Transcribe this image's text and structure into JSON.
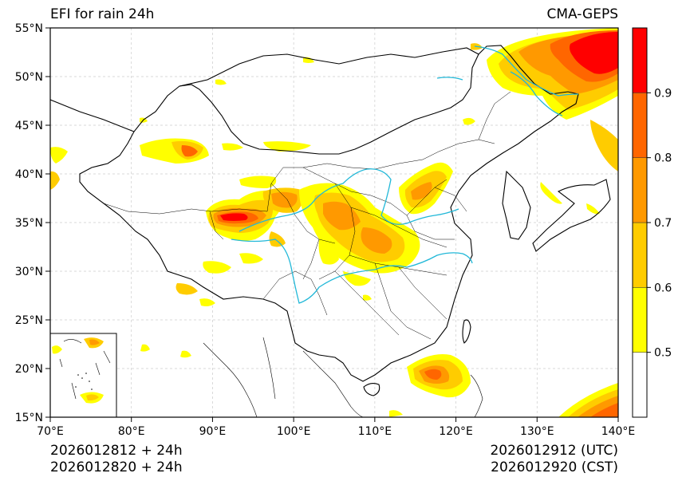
{
  "title": "EFI for rain 24h",
  "source": "CMA-GEPS",
  "run": {
    "init_utc": "2026012812 + 24h",
    "init_cst": "2026012820 + 24h",
    "valid_utc": "2026012912 (UTC)",
    "valid_cst": "2026012920 (CST)"
  },
  "axes": {
    "lon_range": [
      70,
      140
    ],
    "lat_range": [
      15,
      55
    ],
    "lon_ticks": [
      "70°E",
      "80°E",
      "90°E",
      "100°E",
      "110°E",
      "120°E",
      "130°E",
      "140°E"
    ],
    "lat_ticks": [
      "15°N",
      "20°N",
      "25°N",
      "30°N",
      "35°N",
      "40°N",
      "45°N",
      "50°N",
      "55°N"
    ],
    "grid": true
  },
  "colorbar": {
    "levels": [
      0.4,
      0.5,
      0.6,
      0.7,
      0.8,
      0.9,
      1.0
    ],
    "labels": [
      "0.5",
      "0.6",
      "0.7",
      "0.8",
      "0.9"
    ],
    "colors": [
      "#ffffff",
      "#ffff00",
      "#ffcc00",
      "#ff9900",
      "#ff6600",
      "#ff0000"
    ]
  },
  "colors": {
    "border": "#000000",
    "river": "#22b8d8",
    "grid": "#cccccc"
  }
}
